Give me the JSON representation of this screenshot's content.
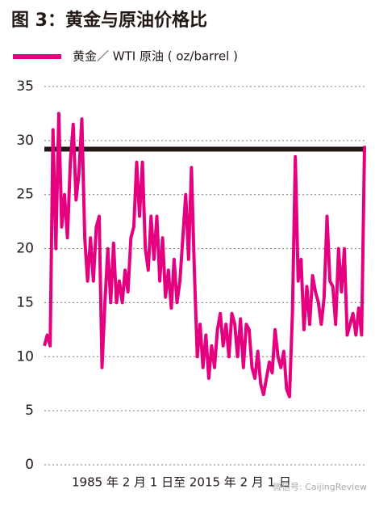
{
  "chart_data": {
    "type": "line",
    "title": "图 3：黄金与原油价格比",
    "x_label": "1985 年 2 月 1 日至 2015 年 2 月 1 日",
    "watermark": "微信号: CaijingReview",
    "series": [
      {
        "name": "黄金／ WTI 原油 ( oz/barrel )",
        "color": "#e4007f",
        "values": [
          11,
          12,
          11,
          31,
          20,
          32.5,
          22,
          25,
          21,
          28,
          31.5,
          24.5,
          27,
          32,
          21,
          17,
          21,
          17,
          22,
          23,
          9,
          15,
          20,
          15,
          20.5,
          15,
          17,
          15,
          18,
          16,
          21,
          22,
          28,
          23,
          28,
          20,
          18,
          23,
          19,
          23,
          17,
          21,
          15.5,
          18,
          14.5,
          19,
          15,
          17,
          21,
          25,
          19,
          27.5,
          18,
          10,
          13,
          9,
          12,
          8,
          11,
          9,
          12.5,
          14,
          11,
          13,
          10,
          14,
          13,
          10,
          13.5,
          9,
          13,
          12.5,
          9,
          8,
          10.5,
          7.5,
          6.5,
          8,
          9.5,
          8.5,
          12.5,
          10,
          9,
          10.5,
          7,
          6.3,
          14,
          28.5,
          17,
          19,
          12.5,
          16.5,
          13,
          17.5,
          16,
          15,
          13,
          15.5,
          23,
          17,
          16.5,
          13,
          20,
          16,
          20,
          12,
          13,
          14,
          12,
          14.5,
          12,
          29.5
        ]
      }
    ],
    "reference_line": {
      "value": 29.2,
      "color": "#231815"
    },
    "ylim": [
      0,
      35
    ],
    "yticks": [
      0,
      5,
      10,
      15,
      20,
      25,
      30,
      35
    ],
    "grid": true
  }
}
